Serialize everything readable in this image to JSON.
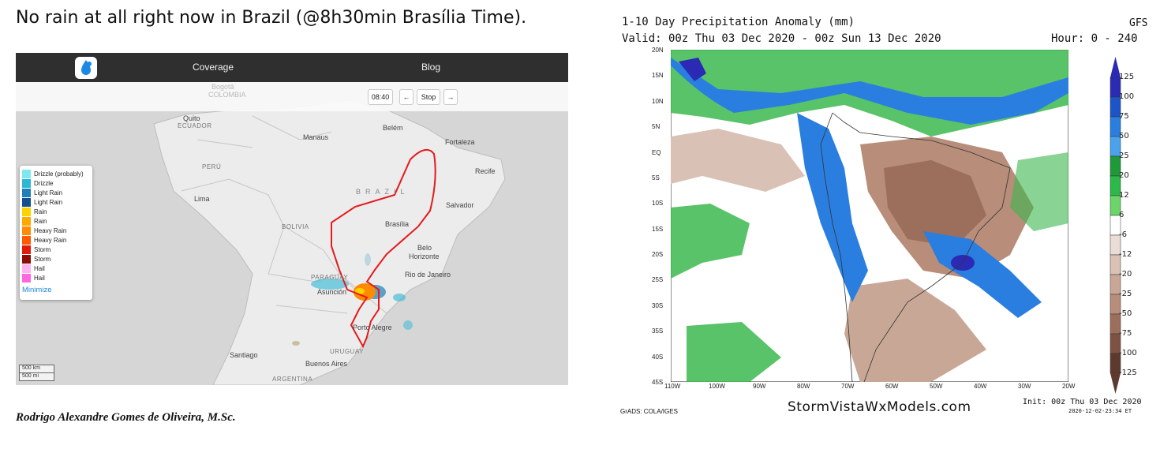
{
  "headline": "No rain at all right now in Brazil (@8h30min Brasília Time).",
  "radar": {
    "nav": {
      "coverage": "Coverage",
      "blog": "Blog"
    },
    "controls": {
      "time": "08:40",
      "prev": "←",
      "stop": "Stop",
      "next": "→"
    },
    "labels": {
      "quito": "Quito",
      "ecuador": "ECUADOR",
      "bogota": "Bogotá",
      "colombia": "COLOMBIA",
      "manaus": "Manaus",
      "belem": "Belém",
      "fortaleza": "Fortaleza",
      "recife": "Recife",
      "peru": "PERÚ",
      "lima": "Lima",
      "brazil": "BRAZIL",
      "salvador": "Salvador",
      "bolivia": "BOLIVIA",
      "brasilia": "Brasília",
      "belo_horizonte_1": "Belo",
      "belo_horizonte_2": "Horizonte",
      "paraguay": "PARAGUAY",
      "asuncion": "Asunción",
      "rio": "Rio de Janeiro",
      "porto_alegre": "Porto Alegre",
      "uruguay": "URUGUAY",
      "santiago": "Santiago",
      "buenos_aires": "Buenos Aires",
      "argentina": "ARGENTINA"
    },
    "legend": {
      "items": [
        {
          "label": "Drizzle (probably)",
          "color": "#7de8ef"
        },
        {
          "label": "Drizzle",
          "color": "#2db7d3"
        },
        {
          "label": "Light Rain",
          "color": "#1f7fb8"
        },
        {
          "label": "Light Rain",
          "color": "#12508f"
        },
        {
          "label": "Rain",
          "color": "#ffd200"
        },
        {
          "label": "Rain",
          "color": "#ffa800"
        },
        {
          "label": "Heavy Rain",
          "color": "#ff8c00"
        },
        {
          "label": "Heavy Rain",
          "color": "#ff5a00"
        },
        {
          "label": "Storm",
          "color": "#e01b0c"
        },
        {
          "label": "Storm",
          "color": "#8b0d05"
        },
        {
          "label": "Hail",
          "color": "#ffb3f0"
        },
        {
          "label": "Hail",
          "color": "#ff66e0"
        }
      ],
      "minimize": "Minimize"
    },
    "scale": {
      "km": "500 km",
      "mi": "500 mi"
    }
  },
  "signature": "Rodrigo Alexandre Gomes de Oliveira, M.Sc.",
  "anomaly": {
    "title": "1-10 Day Precipitation Anomaly (mm)",
    "valid": "Valid: 00z Thu 03 Dec 2020 - 00z Sun 13 Dec 2020",
    "model": "GFS",
    "hour": "Hour: 0 - 240",
    "lat_labels": [
      "20N",
      "15N",
      "10N",
      "5N",
      "EQ",
      "5S",
      "10S",
      "15S",
      "20S",
      "25S",
      "30S",
      "35S",
      "40S",
      "45S"
    ],
    "lon_labels": [
      "110W",
      "100W",
      "90W",
      "80W",
      "70W",
      "60W",
      "50W",
      "40W",
      "30W",
      "20W"
    ],
    "colorbar_labels": [
      "125",
      "100",
      "75",
      "50",
      "25",
      "20",
      "12",
      "6",
      "-6",
      "-12",
      "-20",
      "-25",
      "-50",
      "-75",
      "-100",
      "-125"
    ],
    "colorbar_colors": [
      "#2a2ab5",
      "#1c55c8",
      "#2a7ee0",
      "#4aa2ec",
      "#1e9a3a",
      "#2db84a",
      "#6cd56a",
      "#ffffff",
      "#eadcd6",
      "#d9c1b5",
      "#c9a796",
      "#b88d7a",
      "#9c6e5c",
      "#7d5243",
      "#5e3a2e"
    ],
    "credit_left": "GrADS: COLA/IGES",
    "website": "StormVistaWxModels.com",
    "init": "Init: 00z Thu 03 Dec 2020",
    "stamp": "2020-12-02-23:34 ET"
  }
}
